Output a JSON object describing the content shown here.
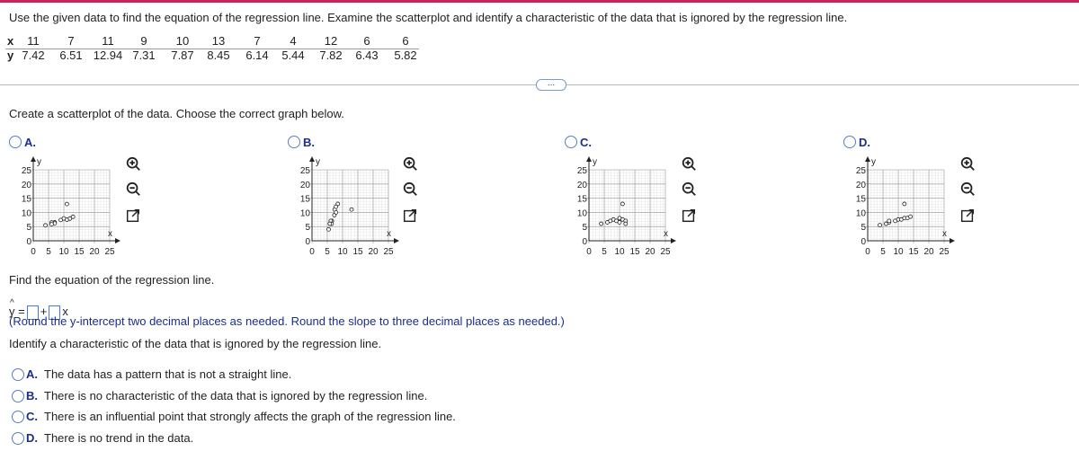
{
  "question": "Use the given data to find the equation of the regression line. Examine the scatterplot and identify a characteristic of the data that is ignored by the regression line.",
  "table": {
    "x_label": "x",
    "x": [
      11,
      7,
      11,
      9,
      10,
      13,
      7,
      4,
      12,
      6,
      6
    ],
    "y_label": "y",
    "y": [
      7.42,
      6.51,
      12.94,
      7.31,
      7.87,
      8.45,
      6.14,
      5.44,
      7.82,
      6.43,
      5.82
    ]
  },
  "more": "...",
  "part1": {
    "prompt": "Create a scatterplot of the data. Choose the correct graph below.",
    "options": [
      {
        "letter": "A.",
        "chart": {
          "type": "scatter",
          "x_label": "x",
          "y_label": "y",
          "xlim": [
            0,
            25
          ],
          "ylim": [
            0,
            25
          ],
          "xticks": [
            0,
            5,
            10,
            15,
            20,
            25
          ],
          "yticks": [
            0,
            5,
            10,
            15,
            20,
            25
          ],
          "x": [
            11,
            7,
            11,
            9,
            10,
            13,
            7,
            4,
            12,
            6,
            6
          ],
          "y": [
            7.42,
            6.51,
            12.94,
            7.31,
            7.87,
            8.45,
            6.14,
            5.44,
            7.82,
            6.43,
            5.82
          ]
        }
      },
      {
        "letter": "B.",
        "chart": {
          "type": "scatter",
          "x_label": "x",
          "y_label": "y",
          "xlim": [
            0,
            25
          ],
          "ylim": [
            0,
            25
          ],
          "xticks": [
            0,
            5,
            10,
            15,
            20,
            25
          ],
          "yticks": [
            0,
            5,
            10,
            15,
            20,
            25
          ],
          "x": [
            7.42,
            6.51,
            12.94,
            7.31,
            7.87,
            8.45,
            6.14,
            5.44,
            7.82,
            6.43,
            5.82
          ],
          "y": [
            11,
            7,
            11,
            9,
            10,
            13,
            7,
            4,
            12,
            6,
            6
          ]
        }
      },
      {
        "letter": "C.",
        "chart": {
          "type": "scatter",
          "x_label": "x",
          "y_label": "y",
          "xlim": [
            0,
            25
          ],
          "ylim": [
            0,
            25
          ],
          "xticks": [
            0,
            5,
            10,
            15,
            20,
            25
          ],
          "yticks": [
            0,
            5,
            10,
            15,
            20,
            25
          ],
          "x": [
            4,
            6,
            7,
            8,
            9,
            10,
            10,
            11,
            12,
            12,
            11
          ],
          "y": [
            6,
            6.5,
            7,
            7.5,
            7,
            6.5,
            8,
            7.5,
            7,
            6,
            13
          ]
        }
      },
      {
        "letter": "D.",
        "chart": {
          "type": "scatter",
          "x_label": "x",
          "y_label": "y",
          "xlim": [
            0,
            25
          ],
          "ylim": [
            0,
            25
          ],
          "xticks": [
            0,
            5,
            10,
            15,
            20,
            25
          ],
          "yticks": [
            0,
            5,
            10,
            15,
            20,
            25
          ],
          "x": [
            4,
            6,
            7,
            7,
            9,
            10,
            11,
            12,
            13,
            14,
            12
          ],
          "y": [
            5.5,
            6,
            6.5,
            7,
            7,
            7.5,
            7.5,
            8,
            8,
            8.5,
            13
          ]
        }
      }
    ]
  },
  "part2": {
    "prompt": "Find the equation of the regression line.",
    "yhat": "y",
    "equals": "=",
    "plus": "+",
    "x": "x",
    "note": "(Round the y-intercept two decimal places as needed. Round the slope to three decimal places as needed.)"
  },
  "part3": {
    "prompt": "Identify a characteristic of the data that is ignored by the regression line.",
    "options": [
      {
        "letter": "A.",
        "text": "The data has a pattern that is not a straight line."
      },
      {
        "letter": "B.",
        "text": "There is no characteristic of the data that is ignored by the regression line."
      },
      {
        "letter": "C.",
        "text": "There is an influential point that strongly affects the graph of the regression line."
      },
      {
        "letter": "D.",
        "text": "There is no trend in the data."
      }
    ]
  }
}
